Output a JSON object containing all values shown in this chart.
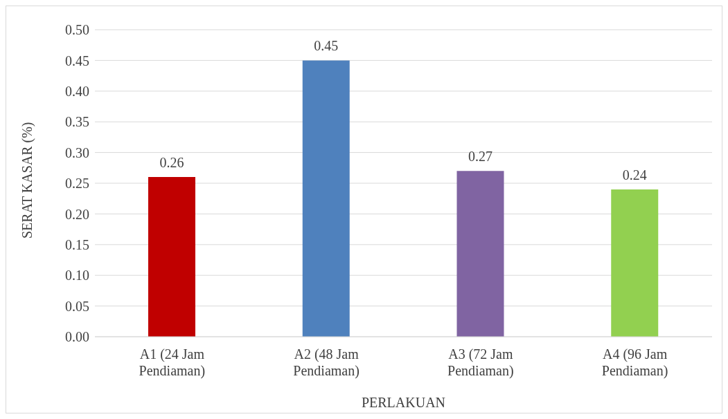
{
  "chart_data": {
    "type": "bar",
    "xlabel": "PERLAKUAN",
    "ylabel": "SERAT KASAR (%)",
    "categories": [
      "A1 (24 Jam Pendiaman)",
      "A2 (48 Jam Pendiaman)",
      "A3 (72 Jam Pendiaman)",
      "A4 (96 Jam Pendiaman)"
    ],
    "values": [
      0.26,
      0.45,
      0.27,
      0.24
    ],
    "colors": [
      "#c00000",
      "#4f81bd",
      "#8064a2",
      "#92d050"
    ],
    "ylim": [
      0,
      0.5
    ],
    "yticks": [
      {
        "value": 0,
        "label": "0.00"
      },
      {
        "value": 0.05,
        "label": "0.05"
      },
      {
        "value": 0.1,
        "label": "0.10"
      },
      {
        "value": 0.15,
        "label": "0.15"
      },
      {
        "value": 0.2,
        "label": "0.20"
      },
      {
        "value": 0.25,
        "label": "0.25"
      },
      {
        "value": 0.3,
        "label": "0.30"
      },
      {
        "value": 0.35,
        "label": "0.35"
      },
      {
        "value": 0.4,
        "label": "0.40"
      },
      {
        "value": 0.45,
        "label": "0.45"
      },
      {
        "value": 0.5,
        "label": "0.50"
      }
    ],
    "grid": "y",
    "data_labels": true,
    "legend": false
  }
}
